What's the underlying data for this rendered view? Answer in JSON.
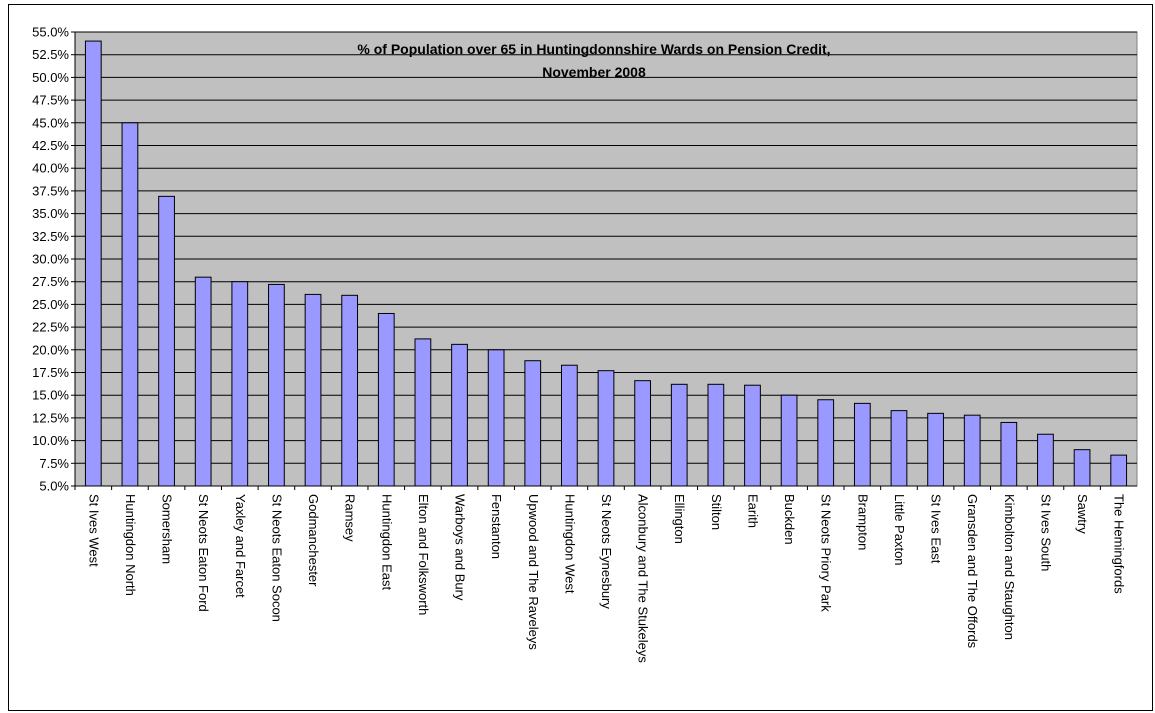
{
  "chart_data": {
    "type": "bar",
    "title_lines": [
      "% of Population over 65 in Huntingdonnshire Wards on Pension Credit,",
      "November 2008"
    ],
    "xlabel": "",
    "ylabel": "",
    "ylim": [
      5.0,
      55.0
    ],
    "y_ticks": [
      "5.0%",
      "7.5%",
      "10.0%",
      "12.5%",
      "15.0%",
      "17.5%",
      "20.0%",
      "22.5%",
      "25.0%",
      "27.5%",
      "30.0%",
      "32.5%",
      "35.0%",
      "37.5%",
      "40.0%",
      "42.5%",
      "45.0%",
      "47.5%",
      "50.0%",
      "52.5%",
      "55.0%"
    ],
    "grid": true,
    "legend": "none",
    "categories": [
      "St Ives West",
      "Huntingdon North",
      "Somersham",
      "St Neots Eaton Ford",
      "Yaxley and Farcet",
      "St Neots Eaton Socon",
      "Godmanchester",
      "Ramsey",
      "Huntingdon East",
      "Elton and Folksworth",
      "Warboys and Bury",
      "Fenstanton",
      "Upwood and The Raveleys",
      "Huntingdon West",
      "St Neots Eynesbury",
      "Alconbury and The Stukeleys",
      "Ellington",
      "Stilton",
      "Earith",
      "Buckden",
      "St Neots Priory Park",
      "Brampton",
      "Little Paxton",
      "St Ives East",
      "Gransden and The Offords",
      "Kimbolton and Staughton",
      "St Ives South",
      "Sawtry",
      "The Hemingfords"
    ],
    "values": [
      54.0,
      45.0,
      36.9,
      28.0,
      27.5,
      27.2,
      26.1,
      26.0,
      24.0,
      21.2,
      20.6,
      20.0,
      18.8,
      18.3,
      17.7,
      16.6,
      16.2,
      16.2,
      16.1,
      15.0,
      14.5,
      14.1,
      13.3,
      13.0,
      12.8,
      12.0,
      10.7,
      9.0,
      8.4
    ],
    "colors": {
      "bar_fill": "#9999ff",
      "bar_stroke": "#000000",
      "plot_bg": "#c0c0c0",
      "grid": "#000000"
    }
  }
}
